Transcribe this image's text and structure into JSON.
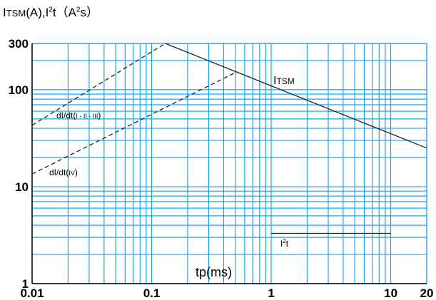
{
  "chart_data": {
    "type": "line",
    "title": {
      "part1": "I",
      "part1_sub": "TSM",
      "part2": "(A),I",
      "part2_sup": "2",
      "part3": "t（A",
      "part3_sup": "2",
      "part4": "s）"
    },
    "xlabel": "tp(ms)",
    "xscale": "log",
    "yscale": "log",
    "xlim": [
      0.01,
      20
    ],
    "ylim": [
      1,
      300
    ],
    "x_ticks": [
      {
        "value": 0.01,
        "label": "0.01"
      },
      {
        "value": 0.1,
        "label": "0.1"
      },
      {
        "value": 1,
        "label": "1"
      },
      {
        "value": 10,
        "label": "10"
      },
      {
        "value": 20,
        "label": "20"
      }
    ],
    "y_ticks": [
      {
        "value": 1,
        "label": "1"
      },
      {
        "value": 10,
        "label": "10"
      },
      {
        "value": 100,
        "label": "100"
      },
      {
        "value": 300,
        "label": "300"
      }
    ],
    "grid": true,
    "grid_color": "#1aa3e8",
    "series": [
      {
        "name": "ITSM",
        "style": "solid",
        "x": [
          0.13,
          20
        ],
        "y": [
          300,
          25
        ]
      },
      {
        "name": "dI/dt(I-II-III)",
        "style": "dashed",
        "x": [
          0.01,
          0.13
        ],
        "y": [
          43,
          300
        ]
      },
      {
        "name": "dI/dt(IV)",
        "style": "dashed",
        "x": [
          0.01,
          0.5
        ],
        "y": [
          13.5,
          150
        ]
      },
      {
        "name": "I²t",
        "style": "solid",
        "x": [
          1,
          10
        ],
        "y": [
          3.3,
          3.3
        ]
      }
    ],
    "labels": {
      "itsm": {
        "main": "I",
        "sub": "TSM"
      },
      "didt_123": {
        "main": "dI/dt(",
        "small": "I - II - III",
        "end": ")"
      },
      "didt_4": {
        "main": "dI/dt(",
        "small": "IV",
        "end": ")"
      },
      "i2t": {
        "main": "I",
        "sup": "2",
        "end": "t"
      }
    }
  }
}
